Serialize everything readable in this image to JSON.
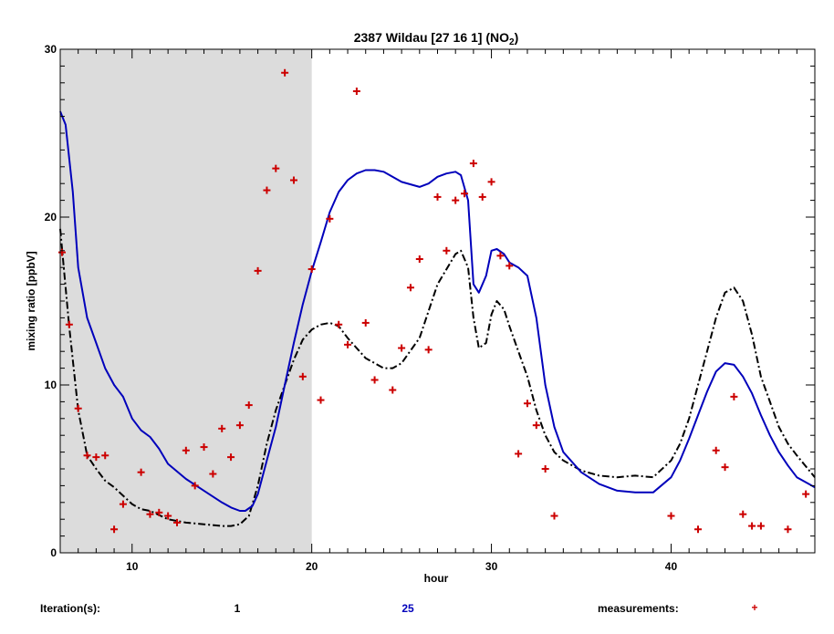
{
  "chart_data": {
    "type": "line",
    "title": {
      "main": "2387 Wildau  [27 16 1]  (NO",
      "subscript": "2",
      "close": ")"
    },
    "xlabel": "hour",
    "ylabel": "mixing ratio [ppbV]",
    "xlim": [
      6,
      48
    ],
    "ylim": [
      0,
      30
    ],
    "x_ticks": [
      10,
      20,
      30,
      40
    ],
    "y_ticks": [
      0,
      10,
      20,
      30
    ],
    "x_minor_step": 1,
    "y_minor_step": 1,
    "night_shading": {
      "x0": 6,
      "x1": 20,
      "color": "#dcdcdc"
    },
    "series": [
      {
        "name": "1",
        "style": "dash-dot",
        "color": "#000000",
        "x": [
          6,
          6.5,
          7,
          7.5,
          8,
          8.5,
          9,
          9.5,
          10,
          10.5,
          11,
          12,
          13,
          14,
          15,
          15.5,
          16,
          16.5,
          17,
          17.5,
          18,
          18.5,
          19,
          19.5,
          20,
          20.5,
          21,
          21.5,
          22,
          23,
          24,
          24.5,
          25,
          26,
          27,
          28,
          28.3,
          28.7,
          29,
          29.3,
          29.7,
          30,
          30.3,
          30.7,
          31,
          31.5,
          32,
          32.5,
          33,
          33.5,
          34,
          35,
          36,
          37,
          38,
          39,
          40,
          40.5,
          41,
          41.5,
          42,
          42.5,
          43,
          43.5,
          44,
          44.5,
          45,
          45.5,
          46,
          46.5,
          47,
          48
        ],
        "values": [
          19.3,
          13.5,
          8.5,
          5.8,
          5.0,
          4.3,
          3.9,
          3.4,
          2.9,
          2.6,
          2.5,
          2.0,
          1.8,
          1.7,
          1.6,
          1.6,
          1.7,
          2.2,
          4.0,
          6.5,
          8.5,
          10.0,
          11.5,
          12.7,
          13.3,
          13.6,
          13.7,
          13.5,
          12.8,
          11.6,
          11.0,
          11.0,
          11.3,
          12.8,
          16.0,
          17.8,
          18.0,
          17.0,
          14.0,
          12.2,
          12.5,
          14.2,
          15.0,
          14.5,
          13.5,
          12.0,
          10.5,
          8.5,
          7.0,
          6.0,
          5.5,
          4.9,
          4.6,
          4.5,
          4.6,
          4.5,
          5.5,
          6.5,
          8.0,
          10.0,
          12.0,
          14.0,
          15.5,
          15.8,
          15.0,
          13.0,
          10.5,
          9.0,
          7.5,
          6.5,
          5.8,
          4.5
        ]
      },
      {
        "name": "25",
        "style": "solid",
        "color": "#0000bb",
        "x": [
          6,
          6.3,
          6.7,
          7,
          7.5,
          8,
          8.5,
          9,
          9.5,
          10,
          10.5,
          11,
          11.5,
          12,
          13,
          14,
          15,
          15.5,
          16,
          16.3,
          16.7,
          17,
          17.5,
          18,
          18.5,
          19,
          19.5,
          20,
          20.5,
          21,
          21.5,
          22,
          22.5,
          23,
          23.5,
          24,
          25,
          26,
          26.5,
          27,
          27.5,
          28,
          28.3,
          28.7,
          29,
          29.3,
          29.7,
          30,
          30.3,
          30.7,
          31,
          31.5,
          32,
          32.5,
          33,
          33.5,
          34,
          35,
          36,
          37,
          38,
          39,
          40,
          40.5,
          41,
          41.5,
          42,
          42.5,
          43,
          43.5,
          44,
          44.5,
          45,
          45.5,
          46,
          46.5,
          47,
          48
        ],
        "values": [
          26.3,
          25.5,
          21.5,
          17.0,
          14.0,
          12.5,
          11.0,
          10.0,
          9.3,
          8.0,
          7.3,
          6.9,
          6.2,
          5.3,
          4.4,
          3.7,
          3.0,
          2.7,
          2.5,
          2.5,
          2.8,
          3.5,
          5.5,
          7.5,
          10.0,
          12.5,
          14.8,
          16.8,
          18.5,
          20.3,
          21.5,
          22.2,
          22.6,
          22.8,
          22.8,
          22.7,
          22.1,
          21.8,
          22.0,
          22.4,
          22.6,
          22.7,
          22.5,
          21.0,
          16.0,
          15.5,
          16.5,
          18.0,
          18.1,
          17.8,
          17.3,
          17.0,
          16.5,
          14.0,
          10.0,
          7.5,
          6.0,
          4.8,
          4.1,
          3.7,
          3.6,
          3.6,
          4.5,
          5.5,
          6.8,
          8.2,
          9.6,
          10.8,
          11.3,
          11.2,
          10.5,
          9.5,
          8.2,
          7.0,
          6.0,
          5.2,
          4.5,
          3.9
        ]
      }
    ],
    "measurements": {
      "name": "measurements",
      "marker": "+",
      "color": "#cc0000",
      "x": [
        6.1,
        6.5,
        7.0,
        7.5,
        8.0,
        8.5,
        9.0,
        9.5,
        10.5,
        11.0,
        11.5,
        12.0,
        12.5,
        13.0,
        13.5,
        14.0,
        14.5,
        15.0,
        15.5,
        16.0,
        16.5,
        17.0,
        17.5,
        18.0,
        18.5,
        19.0,
        19.5,
        20.0,
        20.5,
        21.0,
        21.5,
        22.0,
        22.5,
        23.0,
        23.5,
        24.5,
        25.0,
        25.5,
        26.0,
        26.5,
        27.0,
        27.5,
        28.0,
        28.5,
        29.0,
        29.5,
        30.0,
        30.5,
        31.0,
        31.5,
        32.0,
        32.5,
        33.0,
        33.5,
        40.0,
        41.5,
        42.5,
        43.0,
        43.5,
        44.0,
        44.5,
        45.0,
        46.5,
        47.5
      ],
      "values": [
        17.9,
        13.6,
        8.6,
        5.8,
        5.7,
        5.8,
        1.4,
        2.9,
        4.8,
        2.3,
        2.4,
        2.2,
        1.8,
        6.1,
        4.0,
        6.3,
        4.7,
        7.4,
        5.7,
        7.6,
        8.8,
        16.8,
        21.6,
        22.9,
        28.6,
        22.2,
        10.5,
        16.9,
        9.1,
        19.9,
        13.6,
        12.4,
        27.5,
        13.7,
        10.3,
        9.7,
        12.2,
        15.8,
        17.5,
        12.1,
        21.2,
        18.0,
        21.0,
        21.4,
        23.2,
        21.2,
        22.1,
        17.7,
        17.1,
        5.9,
        8.9,
        7.6,
        5.0,
        2.2,
        2.2,
        1.4,
        6.1,
        5.1,
        9.3,
        2.3,
        1.6,
        1.6,
        1.4,
        3.5
      ]
    },
    "legend": {
      "placement": "bottom",
      "iterations_label": "Iteration(s):",
      "measurements_label": "measurements:",
      "marker": "+"
    }
  }
}
